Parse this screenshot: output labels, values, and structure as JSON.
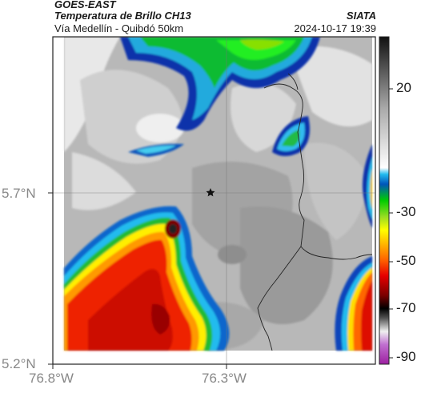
{
  "header": {
    "title": "GOES-EAST",
    "product": "Temperatura de Brillo CH13",
    "source": "SIATA",
    "region": "Vía Medellín - Quibdó 50km",
    "datetime": "2024-10-17 19:39"
  },
  "axes": {
    "lat_labels": [
      "5.7°N",
      "5.2°N"
    ],
    "lon_labels": [
      "76.8°W",
      "76.3°W"
    ]
  },
  "colorbar": {
    "ticks": [
      "20",
      "-30",
      "-50",
      "-70",
      "-90"
    ],
    "colors": [
      "#9d1fa0",
      "#b84fc4",
      "#000000",
      "#5a0000",
      "#b00000",
      "#e60000",
      "#ff5500",
      "#ff9900",
      "#ffee00",
      "#b5e61d",
      "#22aa22",
      "#00dd00",
      "#0066cc",
      "#33ccee",
      "#f5f5f5",
      "#999999",
      "#333333"
    ]
  },
  "marker": {
    "icon": "star-icon"
  }
}
